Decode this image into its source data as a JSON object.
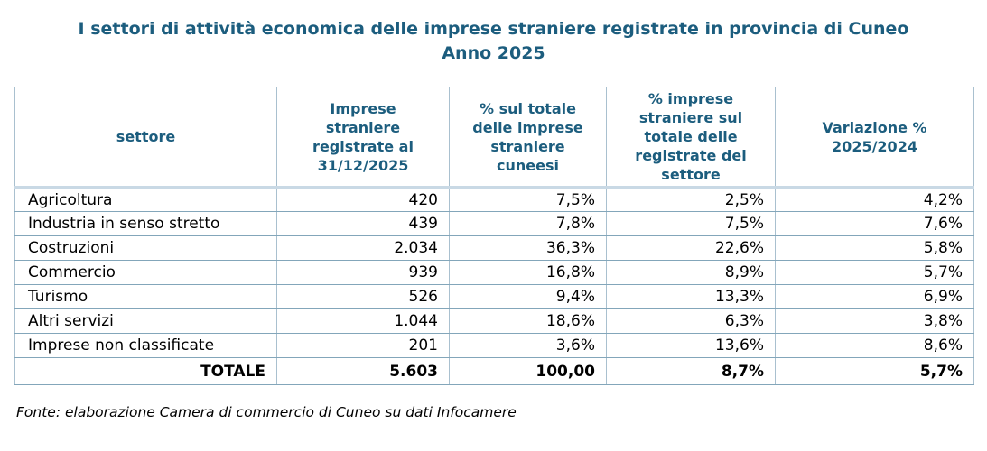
{
  "title": {
    "line1": "I settori di attività economica delle imprese straniere registrate in provincia di Cuneo",
    "line2": "Anno 2025"
  },
  "table": {
    "columns": [
      "settore",
      "Imprese\nstraniere\nregistrate al\n31/12/2025",
      "% sul totale\ndelle imprese\nstraniere\ncuneesi",
      "% imprese\nstraniere sul\ntotale delle\nregistrate del\nsettore",
      "Variazione %\n2025/2024"
    ],
    "rows": [
      [
        "Agricoltura",
        "420",
        "7,5%",
        "2,5%",
        "4,2%"
      ],
      [
        "Industria in senso stretto",
        "439",
        "7,8%",
        "7,5%",
        "7,6%"
      ],
      [
        "Costruzioni",
        "2.034",
        "36,3%",
        "22,6%",
        "5,8%"
      ],
      [
        "Commercio",
        "939",
        "16,8%",
        "8,9%",
        "5,7%"
      ],
      [
        "Turismo",
        "526",
        "9,4%",
        "13,3%",
        "6,9%"
      ],
      [
        "Altri servizi",
        "1.044",
        "18,6%",
        "6,3%",
        "3,8%"
      ],
      [
        "Imprese non classificate",
        "201",
        "3,6%",
        "13,6%",
        "8,6%"
      ]
    ],
    "total_row": [
      "TOTALE",
      "5.603",
      "100,00",
      "8,7%",
      "5,7%"
    ]
  },
  "footer": {
    "source": "Fonte: elaborazione Camera di commercio di Cuneo su dati Infocamere"
  },
  "colors": {
    "title": "#1C5D7E",
    "header_text": "#1C5D7E",
    "body_text": "#000000",
    "border_outer": "#7EA3B8",
    "border_vertical": "#A9C0CF",
    "border_row": "#83A6BA",
    "header_bottom_border": "#C9D9E5",
    "background": "#FFFFFF"
  }
}
